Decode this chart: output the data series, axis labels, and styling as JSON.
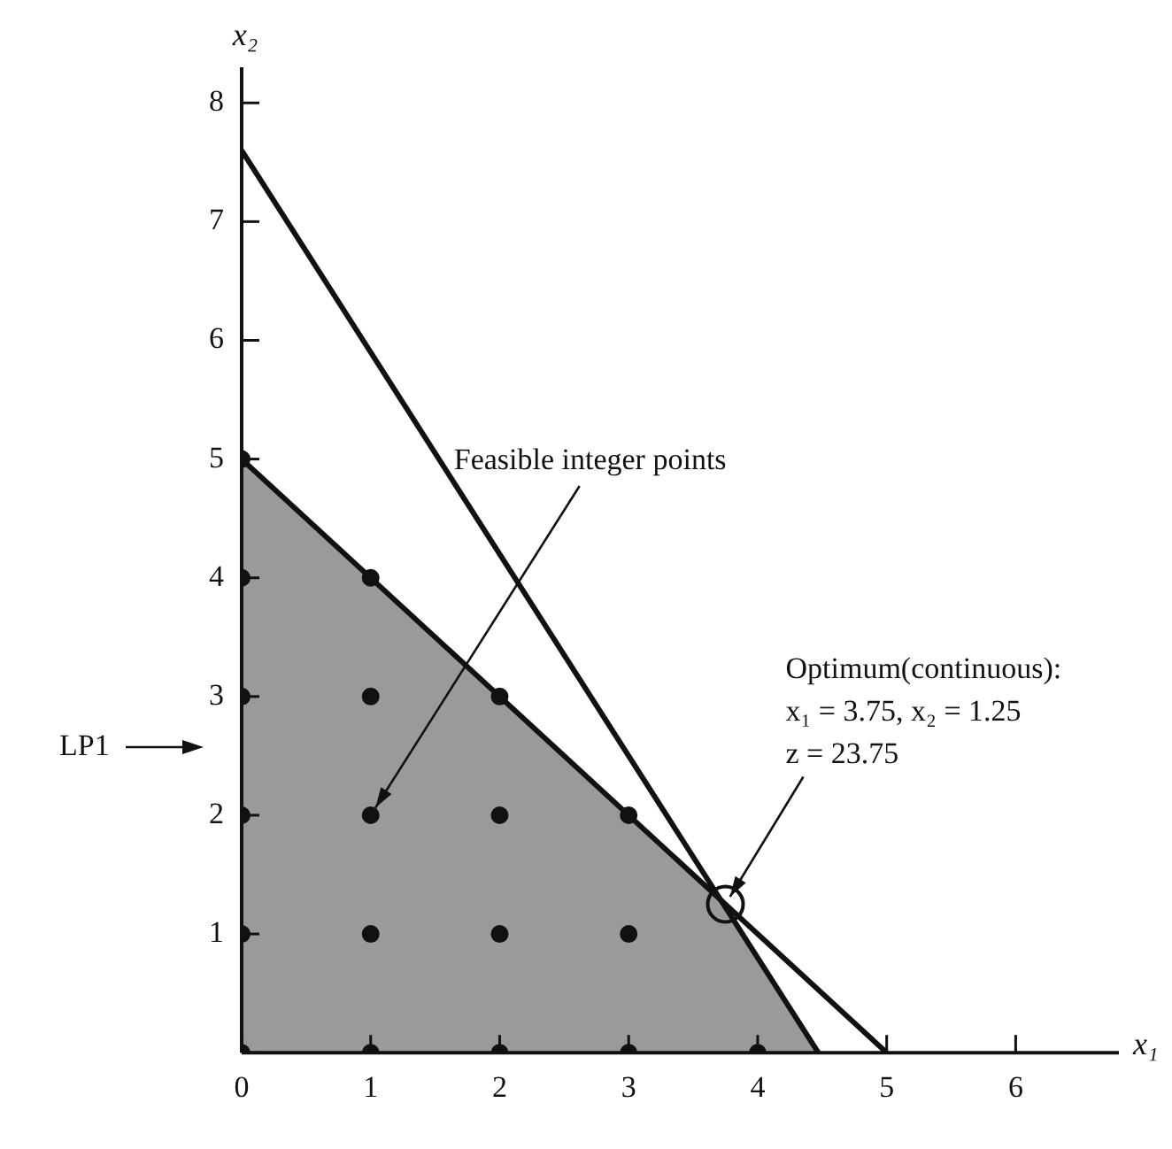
{
  "chart_data": {
    "type": "line",
    "xlabel": "x₁",
    "ylabel": "x₂",
    "xlim": [
      0,
      6.8
    ],
    "ylim": [
      0,
      8.3
    ],
    "xticks": [
      0,
      1,
      2,
      3,
      4,
      5,
      6
    ],
    "yticks": [
      {
        "value": 0,
        "label": null
      },
      1,
      2,
      3,
      4,
      5,
      6,
      7,
      8
    ],
    "grid": false,
    "legend": false,
    "series": [
      {
        "type": "area",
        "color": "#9a9a9a",
        "marker": "none",
        "x": [
          0,
          3.75,
          4.47
        ],
        "values": [
          5,
          1.25,
          0
        ]
      },
      {
        "type": "line",
        "color": "#111111",
        "marker": "none",
        "x": [
          0,
          5
        ],
        "values": [
          5,
          0
        ]
      },
      {
        "type": "line",
        "color": "#111111",
        "marker": "none",
        "x": [
          0,
          4.47
        ],
        "values": [
          7.6,
          0
        ]
      },
      {
        "type": "scatter",
        "color": "#111111",
        "marker": "circle",
        "x": [
          0,
          1,
          2,
          3,
          4,
          0,
          1,
          2,
          3,
          0,
          1,
          2,
          3,
          0,
          1,
          2,
          0,
          1,
          0
        ],
        "values": [
          0,
          0,
          0,
          0,
          0,
          1,
          1,
          1,
          1,
          2,
          2,
          2,
          2,
          3,
          3,
          3,
          4,
          4,
          5
        ]
      },
      {
        "type": "scatter",
        "color": "#111111",
        "marker": "circle",
        "x": [
          3.75
        ],
        "values": [
          1.25
        ]
      }
    ],
    "annotations": [
      {
        "text": "Feasible integer points",
        "x": 1,
        "y": 2
      },
      {
        "text": "Optimum(continuous):\nx₁ = 3.75, x₂ = 1.25\nz = 23.75",
        "x": 3.75,
        "y": 1.25
      },
      "LP1"
    ]
  }
}
